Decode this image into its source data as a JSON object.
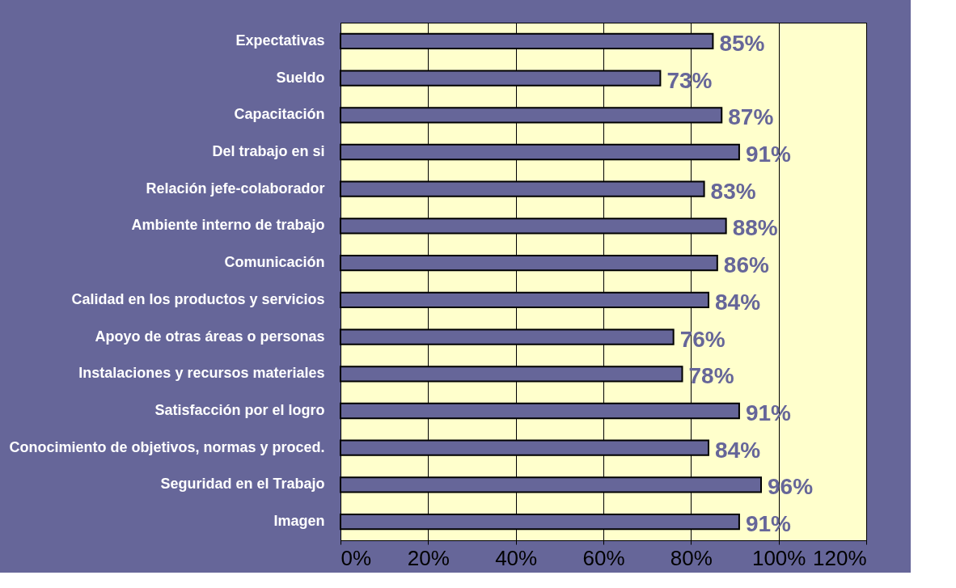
{
  "chart_data": {
    "type": "bar",
    "orientation": "horizontal",
    "categories": [
      "Expectativas",
      "Sueldo",
      "Capacitación",
      "Del trabajo en si",
      "Relación jefe-colaborador",
      "Ambiente interno de trabajo",
      "Comunicación",
      "Calidad en los productos y servicios",
      "Apoyo de otras áreas o personas",
      "Instalaciones y recursos materiales",
      "Satisfacción por el logro",
      "Conocimiento de objetivos, normas y proced.",
      "Seguridad en el Trabajo",
      "Imagen"
    ],
    "values": [
      85,
      73,
      87,
      91,
      83,
      88,
      86,
      84,
      76,
      78,
      91,
      84,
      96,
      91
    ],
    "value_labels": [
      "85%",
      "73%",
      "87%",
      "91%",
      "83%",
      "88%",
      "86%",
      "84%",
      "76%",
      "78%",
      "91%",
      "84%",
      "96%",
      "91%"
    ],
    "color": "#666699",
    "xlim": [
      0,
      120
    ],
    "xticks": [
      {
        "value": 0,
        "label": "0%"
      },
      {
        "value": 20,
        "label": "20%"
      },
      {
        "value": 40,
        "label": "40%"
      },
      {
        "value": 60,
        "label": "60%"
      },
      {
        "value": 80,
        "label": "80%"
      },
      {
        "value": 100,
        "label": "100%"
      },
      {
        "value": 120,
        "label": "120%"
      }
    ],
    "grid": "x"
  }
}
